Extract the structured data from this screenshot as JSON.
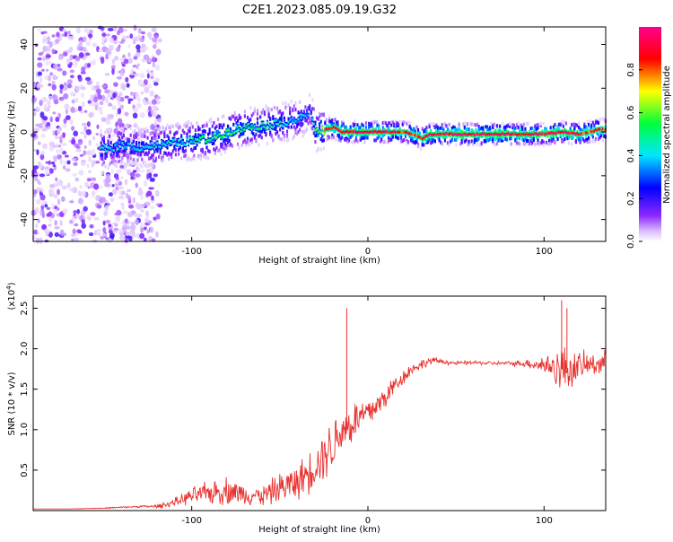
{
  "title": "C2E1.2023.085.09.19.G32",
  "chart_data": [
    {
      "type": "heatmap",
      "xlabel": "Height of straight line (km)",
      "ylabel": "Frequency (Hz)",
      "xlim": [
        -190,
        135
      ],
      "ylim": [
        -50,
        48
      ],
      "x_ticks": [
        -100,
        0,
        100
      ],
      "y_ticks": [
        -40,
        -20,
        0,
        20,
        40
      ],
      "colorbar": {
        "label": "Normalized spectral amplitude",
        "range": [
          0,
          1
        ],
        "ticks": [
          0.0,
          0.2,
          0.4,
          0.6,
          0.8
        ],
        "colors": [
          "#ffffff",
          "#8000ff",
          "#0000ff",
          "#00ffff",
          "#00ff00",
          "#ffff00",
          "#ff0000",
          "#ff0080"
        ]
      },
      "ridge": {
        "x": [
          -150,
          -140,
          -130,
          -120,
          -110,
          -100,
          -90,
          -80,
          -70,
          -60,
          -50,
          -40,
          -35,
          -33,
          -30,
          -25,
          -20,
          -15,
          -10,
          0,
          10,
          20,
          25,
          30,
          35,
          40,
          60,
          80,
          100,
          110,
          120,
          130,
          135
        ],
        "y": [
          -8,
          -6,
          -7,
          -6,
          -5,
          -4,
          -3,
          0,
          2,
          3,
          4,
          6,
          8,
          10,
          0,
          1,
          2,
          0,
          0,
          0,
          0,
          0,
          -1,
          -3,
          -1,
          -1,
          -1,
          -1,
          -1,
          0,
          -1,
          1,
          1
        ],
        "amplitude": [
          0.45,
          0.4,
          0.4,
          0.42,
          0.45,
          0.5,
          0.55,
          0.55,
          0.5,
          0.5,
          0.45,
          0.4,
          0.35,
          0.3,
          0.55,
          0.8,
          0.9,
          0.95,
          0.95,
          0.95,
          0.95,
          0.9,
          0.85,
          0.9,
          0.95,
          0.95,
          0.95,
          0.95,
          0.95,
          0.95,
          0.9,
          0.85,
          0.85
        ]
      }
    },
    {
      "type": "line",
      "xlabel": "Height of straight line (km)",
      "ylabel": "SNR (10 * v/v)",
      "y_multiplier": "(x10",
      "y_multiplier_exp": "4",
      "xlim": [
        -190,
        135
      ],
      "ylim": [
        0,
        2.65
      ],
      "x_ticks": [
        -100,
        0,
        100
      ],
      "y_ticks": [
        0.5,
        1.0,
        1.5,
        2.0,
        2.5
      ],
      "series": [
        {
          "color": "#e8312f",
          "x": [
            -190,
            -170,
            -150,
            -130,
            -120,
            -110,
            -100,
            -90,
            -80,
            -70,
            -60,
            -50,
            -40,
            -30,
            -25,
            -20,
            -15,
            -10,
            -5,
            0,
            5,
            10,
            15,
            20,
            25,
            30,
            35,
            40,
            50,
            60,
            70,
            80,
            90,
            100,
            105,
            110,
            115,
            120,
            125,
            130,
            135
          ],
          "y": [
            0.02,
            0.02,
            0.03,
            0.05,
            0.05,
            0.1,
            0.18,
            0.22,
            0.25,
            0.2,
            0.18,
            0.28,
            0.35,
            0.55,
            0.7,
            0.8,
            1.0,
            1.05,
            1.15,
            1.2,
            1.3,
            1.4,
            1.55,
            1.65,
            1.75,
            1.8,
            1.85,
            1.85,
            1.82,
            1.83,
            1.82,
            1.82,
            1.82,
            1.8,
            1.78,
            1.75,
            1.75,
            1.78,
            1.8,
            1.82,
            1.82
          ],
          "noise": [
            0,
            0,
            0.005,
            0.01,
            0.02,
            0.04,
            0.08,
            0.12,
            0.14,
            0.1,
            0.1,
            0.15,
            0.18,
            0.22,
            0.25,
            0.28,
            0.25,
            0.22,
            0.2,
            0.18,
            0.14,
            0.12,
            0.1,
            0.08,
            0.06,
            0.05,
            0.04,
            0.03,
            0.02,
            0.02,
            0.02,
            0.02,
            0.04,
            0.1,
            0.16,
            0.25,
            0.2,
            0.15,
            0.12,
            0.12,
            0.12
          ]
        }
      ],
      "spikes": [
        {
          "x": -12,
          "y": 2.5
        },
        {
          "x": 110,
          "y": 2.6
        },
        {
          "x": 113,
          "y": 2.5
        }
      ]
    }
  ]
}
